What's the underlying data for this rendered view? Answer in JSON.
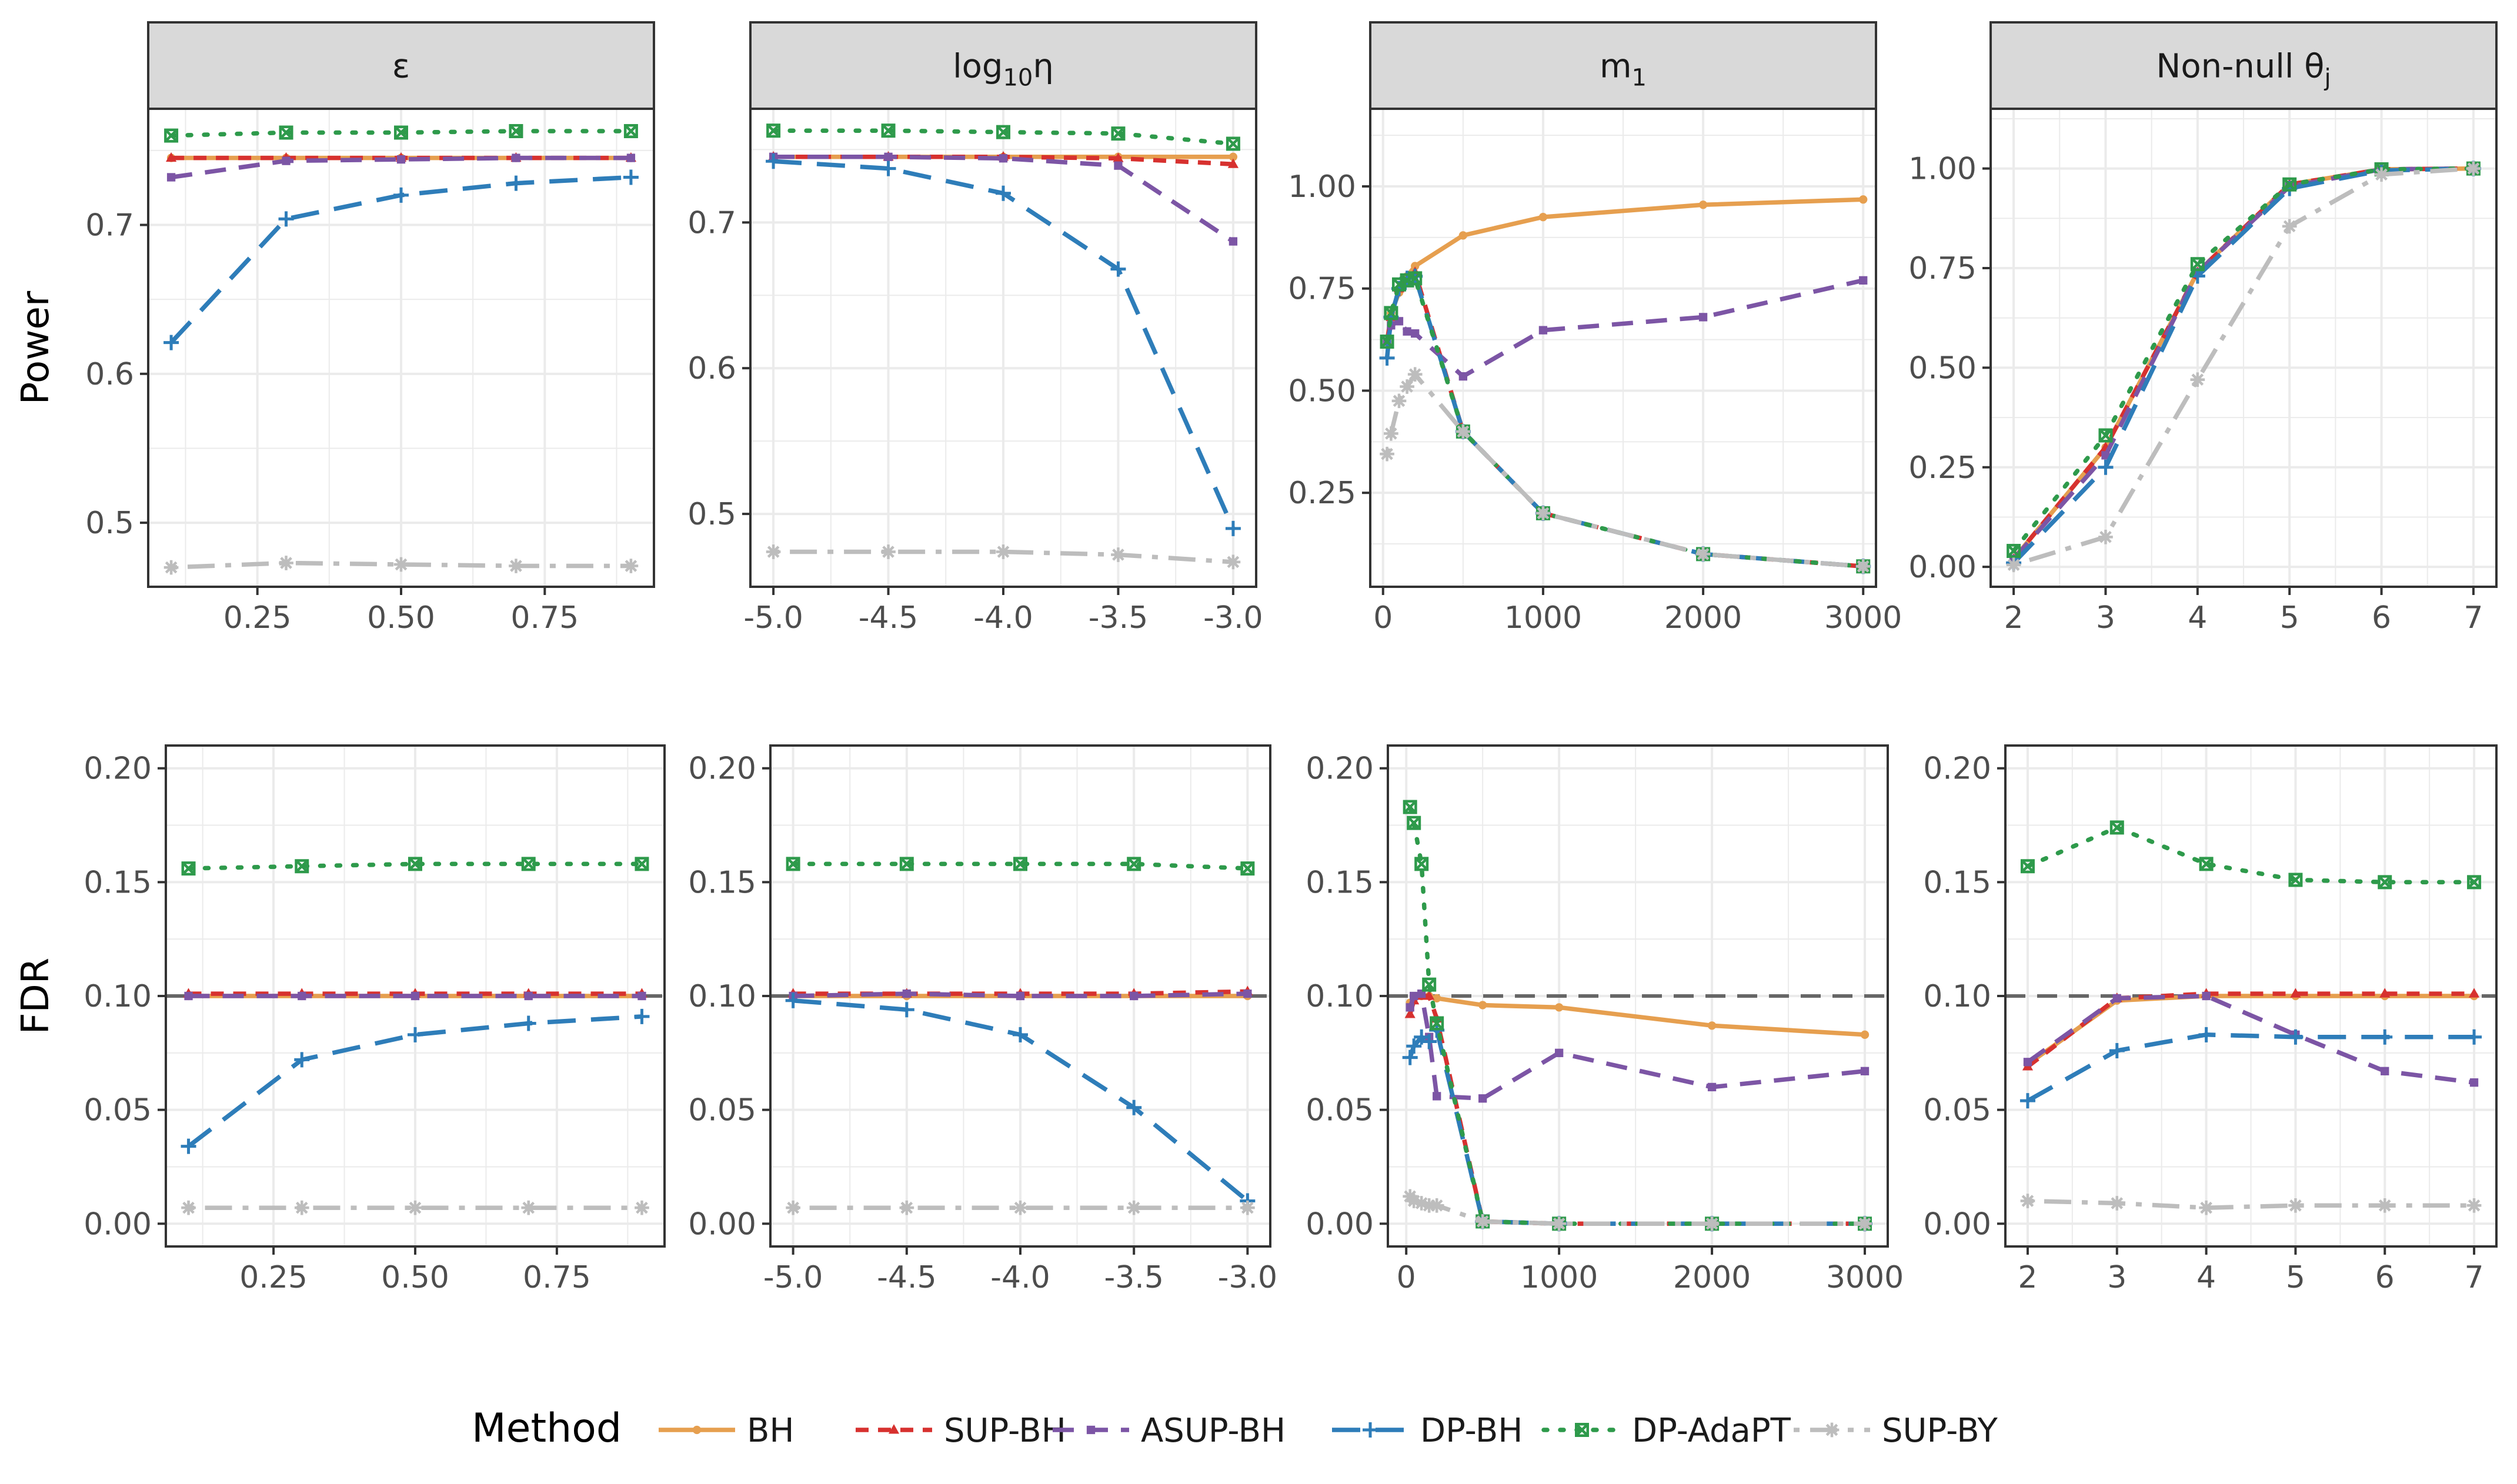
{
  "colors": {
    "BH": "#E69F4F",
    "SUP-BH": "#D7312F",
    "ASUP-BH": "#7C55A5",
    "DP-BH": "#2E7DB9",
    "DP-AdaPT": "#2E9A4B",
    "SUP-BY": "#BDBDBD",
    "strip": "#D9D9D9",
    "grid": "#EBEBEB",
    "refline": "#666666"
  },
  "legend": {
    "title": "Method",
    "entries": [
      {
        "name": "BH",
        "marker": "circle",
        "dash": "solid"
      },
      {
        "name": "SUP-BH",
        "marker": "triangle",
        "dash": "shortdash"
      },
      {
        "name": "ASUP-BH",
        "marker": "square",
        "dash": "dash"
      },
      {
        "name": "DP-BH",
        "marker": "plus",
        "dash": "longdash"
      },
      {
        "name": "DP-AdaPT",
        "marker": "boxx",
        "dash": "dotted"
      },
      {
        "name": "SUP-BY",
        "marker": "star",
        "dash": "dotdash"
      }
    ]
  },
  "row_labels": [
    "Power",
    "FDR"
  ],
  "chart_data": [
    {
      "type": "line",
      "panel": "power-eps",
      "strip": "ε",
      "row": "Power",
      "x": [
        0.1,
        0.3,
        0.5,
        0.7,
        0.9
      ],
      "xticks": [
        0.25,
        0.5,
        0.75
      ],
      "xtick_labels": [
        "0.25",
        "0.50",
        "0.75"
      ],
      "xlim": [
        0.06,
        0.94
      ],
      "ylim": [
        0.457,
        0.778
      ],
      "yticks": [
        0.5,
        0.6,
        0.7
      ],
      "ytick_labels": [
        "0.5",
        "0.6",
        "0.7"
      ],
      "series": [
        {
          "name": "BH",
          "values": [
            0.745,
            0.745,
            0.745,
            0.745,
            0.745
          ]
        },
        {
          "name": "SUP-BH",
          "values": [
            0.745,
            0.745,
            0.745,
            0.745,
            0.745
          ]
        },
        {
          "name": "ASUP-BH",
          "values": [
            0.732,
            0.743,
            0.744,
            0.745,
            0.745
          ]
        },
        {
          "name": "DP-BH",
          "values": [
            0.621,
            0.704,
            0.72,
            0.728,
            0.732
          ]
        },
        {
          "name": "DP-AdaPT",
          "values": [
            0.76,
            0.762,
            0.762,
            0.763,
            0.763
          ]
        },
        {
          "name": "SUP-BY",
          "values": [
            0.47,
            0.473,
            0.472,
            0.471,
            0.471
          ]
        }
      ]
    },
    {
      "type": "line",
      "panel": "power-eta",
      "strip": "log10η",
      "row": "Power",
      "x": [
        -5.0,
        -4.5,
        -4.0,
        -3.5,
        -3.0
      ],
      "xticks": [
        -5.0,
        -4.5,
        -4.0,
        -3.5,
        -3.0
      ],
      "xtick_labels": [
        "-5.0",
        "-4.5",
        "-4.0",
        "-3.5",
        "-3.0"
      ],
      "xlim": [
        -5.1,
        -2.9
      ],
      "ylim": [
        0.45,
        0.778
      ],
      "yticks": [
        0.5,
        0.6,
        0.7
      ],
      "ytick_labels": [
        "0.5",
        "0.6",
        "0.7"
      ],
      "series": [
        {
          "name": "BH",
          "values": [
            0.745,
            0.745,
            0.745,
            0.745,
            0.745
          ]
        },
        {
          "name": "SUP-BH",
          "values": [
            0.745,
            0.745,
            0.745,
            0.744,
            0.74
          ]
        },
        {
          "name": "ASUP-BH",
          "values": [
            0.745,
            0.745,
            0.744,
            0.739,
            0.687
          ]
        },
        {
          "name": "DP-BH",
          "values": [
            0.742,
            0.737,
            0.72,
            0.668,
            0.49
          ]
        },
        {
          "name": "DP-AdaPT",
          "values": [
            0.763,
            0.763,
            0.762,
            0.761,
            0.754
          ]
        },
        {
          "name": "SUP-BY",
          "values": [
            0.474,
            0.474,
            0.474,
            0.472,
            0.467
          ]
        }
      ]
    },
    {
      "type": "line",
      "panel": "power-m1",
      "strip": "m1",
      "row": "Power",
      "x": [
        25,
        50,
        100,
        150,
        200,
        500,
        1000,
        2000,
        3000
      ],
      "xticks": [
        0,
        1000,
        2000,
        3000
      ],
      "xtick_labels": [
        "0",
        "1000",
        "2000",
        "3000"
      ],
      "xlim": [
        -80,
        3080
      ],
      "ylim": [
        0.02,
        1.19
      ],
      "yticks": [
        0.25,
        0.5,
        0.75,
        1.0
      ],
      "ytick_labels": [
        "0.25",
        "0.50",
        "0.75",
        "1.00"
      ],
      "series": [
        {
          "name": "BH",
          "values": [
            0.62,
            0.69,
            0.74,
            0.78,
            0.805,
            0.88,
            0.925,
            0.955,
            0.968
          ]
        },
        {
          "name": "SUP-BH",
          "values": [
            0.62,
            0.68,
            0.75,
            0.77,
            0.79,
            0.4,
            0.2,
            0.1,
            0.07
          ]
        },
        {
          "name": "ASUP-BH",
          "values": [
            0.62,
            0.66,
            0.67,
            0.645,
            0.64,
            0.535,
            0.648,
            0.68,
            0.77
          ]
        },
        {
          "name": "DP-BH",
          "values": [
            0.58,
            0.68,
            0.75,
            0.775,
            0.78,
            0.4,
            0.2,
            0.1,
            0.07
          ]
        },
        {
          "name": "DP-AdaPT",
          "values": [
            0.62,
            0.69,
            0.76,
            0.77,
            0.775,
            0.4,
            0.2,
            0.1,
            0.07
          ]
        },
        {
          "name": "SUP-BY",
          "values": [
            0.345,
            0.395,
            0.475,
            0.51,
            0.54,
            0.4,
            0.2,
            0.1,
            0.07
          ]
        }
      ]
    },
    {
      "type": "line",
      "panel": "power-theta",
      "strip": "Non-null θj",
      "row": "Power",
      "x": [
        2,
        3,
        4,
        5,
        6,
        7
      ],
      "xticks": [
        2,
        3,
        4,
        5,
        6,
        7
      ],
      "xtick_labels": [
        "2",
        "3",
        "4",
        "5",
        "6",
        "7"
      ],
      "xlim": [
        1.75,
        7.25
      ],
      "ylim": [
        -0.05,
        1.15
      ],
      "yticks": [
        0.0,
        0.25,
        0.5,
        0.75,
        1.0
      ],
      "ytick_labels": [
        "0.00",
        "0.25",
        "0.50",
        "0.75",
        "1.00"
      ],
      "series": [
        {
          "name": "BH",
          "values": [
            0.02,
            0.3,
            0.74,
            0.96,
            0.998,
            1.0
          ]
        },
        {
          "name": "SUP-BH",
          "values": [
            0.02,
            0.3,
            0.74,
            0.96,
            0.998,
            1.0
          ]
        },
        {
          "name": "ASUP-BH",
          "values": [
            0.02,
            0.28,
            0.74,
            0.955,
            0.998,
            1.0
          ]
        },
        {
          "name": "DP-BH",
          "values": [
            0.01,
            0.25,
            0.73,
            0.95,
            0.995,
            1.0
          ]
        },
        {
          "name": "DP-AdaPT",
          "values": [
            0.04,
            0.33,
            0.76,
            0.96,
            0.998,
            1.0
          ]
        },
        {
          "name": "SUP-BY",
          "values": [
            0.005,
            0.075,
            0.47,
            0.855,
            0.985,
            1.0
          ]
        }
      ]
    },
    {
      "type": "line",
      "panel": "fdr-eps",
      "strip": "ε",
      "row": "FDR",
      "x": [
        0.1,
        0.3,
        0.5,
        0.7,
        0.9
      ],
      "xticks": [
        0.25,
        0.5,
        0.75
      ],
      "xtick_labels": [
        "0.25",
        "0.50",
        "0.75"
      ],
      "xlim": [
        0.06,
        0.94
      ],
      "ylim": [
        -0.01,
        0.21
      ],
      "yticks": [
        0.0,
        0.05,
        0.1,
        0.15,
        0.2
      ],
      "ytick_labels": [
        "0.00",
        "0.05",
        "0.10",
        "0.15",
        "0.20"
      ],
      "hline": 0.1,
      "series": [
        {
          "name": "BH",
          "values": [
            0.1,
            0.1,
            0.1,
            0.1,
            0.1
          ]
        },
        {
          "name": "SUP-BH",
          "values": [
            0.101,
            0.101,
            0.101,
            0.101,
            0.101
          ]
        },
        {
          "name": "ASUP-BH",
          "values": [
            0.1,
            0.1,
            0.1,
            0.1,
            0.1
          ]
        },
        {
          "name": "DP-BH",
          "values": [
            0.034,
            0.072,
            0.083,
            0.088,
            0.091
          ]
        },
        {
          "name": "DP-AdaPT",
          "values": [
            0.156,
            0.157,
            0.158,
            0.158,
            0.158
          ]
        },
        {
          "name": "SUP-BY",
          "values": [
            0.007,
            0.007,
            0.007,
            0.007,
            0.007
          ]
        }
      ]
    },
    {
      "type": "line",
      "panel": "fdr-eta",
      "strip": "log10η",
      "row": "FDR",
      "x": [
        -5.0,
        -4.5,
        -4.0,
        -3.5,
        -3.0
      ],
      "xticks": [
        -5.0,
        -4.5,
        -4.0,
        -3.5,
        -3.0
      ],
      "xtick_labels": [
        "-5.0",
        "-4.5",
        "-4.0",
        "-3.5",
        "-3.0"
      ],
      "xlim": [
        -5.1,
        -2.9
      ],
      "ylim": [
        -0.01,
        0.21
      ],
      "yticks": [
        0.0,
        0.05,
        0.1,
        0.15,
        0.2
      ],
      "ytick_labels": [
        "0.00",
        "0.05",
        "0.10",
        "0.15",
        "0.20"
      ],
      "hline": 0.1,
      "series": [
        {
          "name": "BH",
          "values": [
            0.1,
            0.1,
            0.1,
            0.1,
            0.1
          ]
        },
        {
          "name": "SUP-BH",
          "values": [
            0.101,
            0.101,
            0.101,
            0.101,
            0.102
          ]
        },
        {
          "name": "ASUP-BH",
          "values": [
            0.1,
            0.101,
            0.1,
            0.1,
            0.101
          ]
        },
        {
          "name": "DP-BH",
          "values": [
            0.098,
            0.094,
            0.083,
            0.051,
            0.01
          ]
        },
        {
          "name": "DP-AdaPT",
          "values": [
            0.158,
            0.158,
            0.158,
            0.158,
            0.156
          ]
        },
        {
          "name": "SUP-BY",
          "values": [
            0.007,
            0.007,
            0.007,
            0.007,
            0.007
          ]
        }
      ]
    },
    {
      "type": "line",
      "panel": "fdr-m1",
      "strip": "m1",
      "row": "FDR",
      "x": [
        25,
        50,
        100,
        150,
        200,
        500,
        1000,
        2000,
        3000
      ],
      "xticks": [
        0,
        1000,
        2000,
        3000
      ],
      "xtick_labels": [
        "0",
        "1000",
        "2000",
        "3000"
      ],
      "xlim": [
        -120,
        3150
      ],
      "ylim": [
        -0.01,
        0.21
      ],
      "yticks": [
        0.0,
        0.05,
        0.1,
        0.15,
        0.2
      ],
      "ytick_labels": [
        "0.00",
        "0.05",
        "0.10",
        "0.15",
        "0.20"
      ],
      "hline": 0.1,
      "series": [
        {
          "name": "BH",
          "values": [
            0.097,
            0.099,
            0.1,
            0.1,
            0.099,
            0.096,
            0.095,
            0.087,
            0.083
          ]
        },
        {
          "name": "SUP-BH",
          "values": [
            0.092,
            0.098,
            0.1,
            0.1,
            0.09,
            0.001,
            0.0,
            0.0,
            0.0
          ]
        },
        {
          "name": "ASUP-BH",
          "values": [
            0.095,
            0.1,
            0.101,
            0.082,
            0.056,
            0.055,
            0.075,
            0.06,
            0.067
          ]
        },
        {
          "name": "DP-BH",
          "values": [
            0.073,
            0.078,
            0.082,
            0.08,
            0.085,
            0.001,
            0.0,
            0.0,
            0.0
          ]
        },
        {
          "name": "DP-AdaPT",
          "values": [
            0.183,
            0.176,
            0.158,
            0.105,
            0.088,
            0.001,
            0.0,
            0.0,
            0.0
          ]
        },
        {
          "name": "SUP-BY",
          "values": [
            0.012,
            0.01,
            0.009,
            0.008,
            0.008,
            0.001,
            0.0,
            0.0,
            0.0
          ]
        }
      ]
    },
    {
      "type": "line",
      "panel": "fdr-theta",
      "strip": "Non-null θj",
      "row": "FDR",
      "x": [
        2,
        3,
        4,
        5,
        6,
        7
      ],
      "xticks": [
        2,
        3,
        4,
        5,
        6,
        7
      ],
      "xtick_labels": [
        "2",
        "3",
        "4",
        "5",
        "6",
        "7"
      ],
      "xlim": [
        1.75,
        7.25
      ],
      "ylim": [
        -0.01,
        0.21
      ],
      "yticks": [
        0.0,
        0.05,
        0.1,
        0.15,
        0.2
      ],
      "ytick_labels": [
        "0.00",
        "0.05",
        "0.10",
        "0.15",
        "0.20"
      ],
      "hline": 0.1,
      "series": [
        {
          "name": "BH",
          "values": [
            0.07,
            0.098,
            0.1,
            0.1,
            0.1,
            0.1
          ]
        },
        {
          "name": "SUP-BH",
          "values": [
            0.069,
            0.099,
            0.101,
            0.101,
            0.101,
            0.101
          ]
        },
        {
          "name": "ASUP-BH",
          "values": [
            0.071,
            0.099,
            0.1,
            0.083,
            0.067,
            0.062
          ]
        },
        {
          "name": "DP-BH",
          "values": [
            0.054,
            0.076,
            0.083,
            0.082,
            0.082,
            0.082
          ]
        },
        {
          "name": "DP-AdaPT",
          "values": [
            0.157,
            0.174,
            0.158,
            0.151,
            0.15,
            0.15
          ]
        },
        {
          "name": "SUP-BY",
          "values": [
            0.01,
            0.009,
            0.007,
            0.008,
            0.008,
            0.008
          ]
        }
      ]
    }
  ]
}
